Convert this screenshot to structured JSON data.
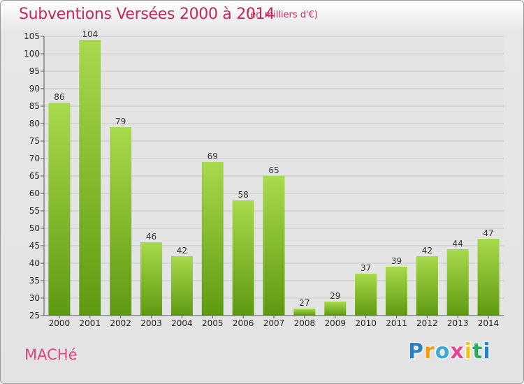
{
  "header": {
    "title": "Subventions Versées 2000 à 2014",
    "unit_note": "(en milliers d'€)"
  },
  "footer": {
    "commune": "MACHé",
    "logo_letters": [
      "P",
      "r",
      "o",
      "x",
      "i",
      "t",
      "i"
    ],
    "logo_colors": [
      "#2c7fc1",
      "#f39c12",
      "#3aa8d8",
      "#e84393",
      "#f1c40f",
      "#27ae60",
      "#2c7fc1"
    ]
  },
  "colors": {
    "bar_light": "#a9d94c",
    "bar_dark": "#5e9a10",
    "title": "#c4285e"
  },
  "chart_data": {
    "type": "bar",
    "categories": [
      "2000",
      "2001",
      "2002",
      "2003",
      "2004",
      "2005",
      "2006",
      "2007",
      "2008",
      "2009",
      "2010",
      "2011",
      "2012",
      "2013",
      "2014"
    ],
    "values": [
      86,
      104,
      79,
      46,
      42,
      69,
      58,
      65,
      27,
      29,
      37,
      39,
      42,
      44,
      47
    ],
    "value_labels": [
      "86",
      "104",
      "79",
      "46",
      "42",
      "69",
      "58",
      "65",
      "27",
      "29",
      "37",
      "39",
      "42",
      "44",
      "47"
    ],
    "title": "Subventions Versées 2000 à 2014",
    "xlabel": "",
    "ylabel": "",
    "ylim": [
      25,
      105
    ],
    "yticks": [
      "25",
      "30",
      "35",
      "40",
      "45",
      "50",
      "55",
      "60",
      "65",
      "70",
      "75",
      "80",
      "85",
      "90",
      "95",
      "100",
      "105"
    ],
    "grid": true
  }
}
